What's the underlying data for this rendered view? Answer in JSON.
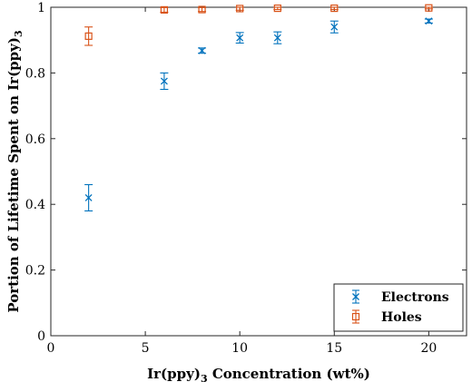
{
  "chart_data": {
    "type": "scatter",
    "xlabel_main": "Ir(ppy)",
    "xlabel_sub": "3",
    "xlabel_rest": " Concentration (wt%)",
    "ylabel_main": "Portion of Lifetime Spent on Ir(ppy)",
    "ylabel_sub": "3",
    "xlim": [
      0,
      22
    ],
    "ylim": [
      0,
      1
    ],
    "xticks": [
      0,
      5,
      10,
      15,
      20
    ],
    "yticks": [
      0,
      0.2,
      0.4,
      0.6,
      0.8,
      1
    ],
    "ytick_labels": [
      "0",
      "0.2",
      "0.4",
      "0.6",
      "0.8",
      "1"
    ],
    "grid": false,
    "legend_position": "bottom-right",
    "series": [
      {
        "name": "Electrons",
        "marker": "x",
        "color": "#0072BD",
        "points": [
          {
            "x": 2,
            "y": 0.42,
            "err": 0.04
          },
          {
            "x": 6,
            "y": 0.775,
            "err": 0.025
          },
          {
            "x": 8,
            "y": 0.868,
            "err": 0.008
          },
          {
            "x": 10,
            "y": 0.907,
            "err": 0.016
          },
          {
            "x": 12,
            "y": 0.907,
            "err": 0.018
          },
          {
            "x": 15,
            "y": 0.94,
            "err": 0.018
          },
          {
            "x": 20,
            "y": 0.958,
            "err": 0.006
          }
        ]
      },
      {
        "name": "Holes",
        "marker": "square",
        "color": "#D95319",
        "points": [
          {
            "x": 2,
            "y": 0.912,
            "err": 0.028
          },
          {
            "x": 6,
            "y": 0.992,
            "err": 0.007
          },
          {
            "x": 8,
            "y": 0.993,
            "err": 0.006
          },
          {
            "x": 10,
            "y": 0.996,
            "err": 0.005
          },
          {
            "x": 12,
            "y": 0.997,
            "err": 0.004
          },
          {
            "x": 15,
            "y": 0.997,
            "err": 0.004
          },
          {
            "x": 20,
            "y": 0.998,
            "err": 0.003
          }
        ]
      }
    ]
  }
}
